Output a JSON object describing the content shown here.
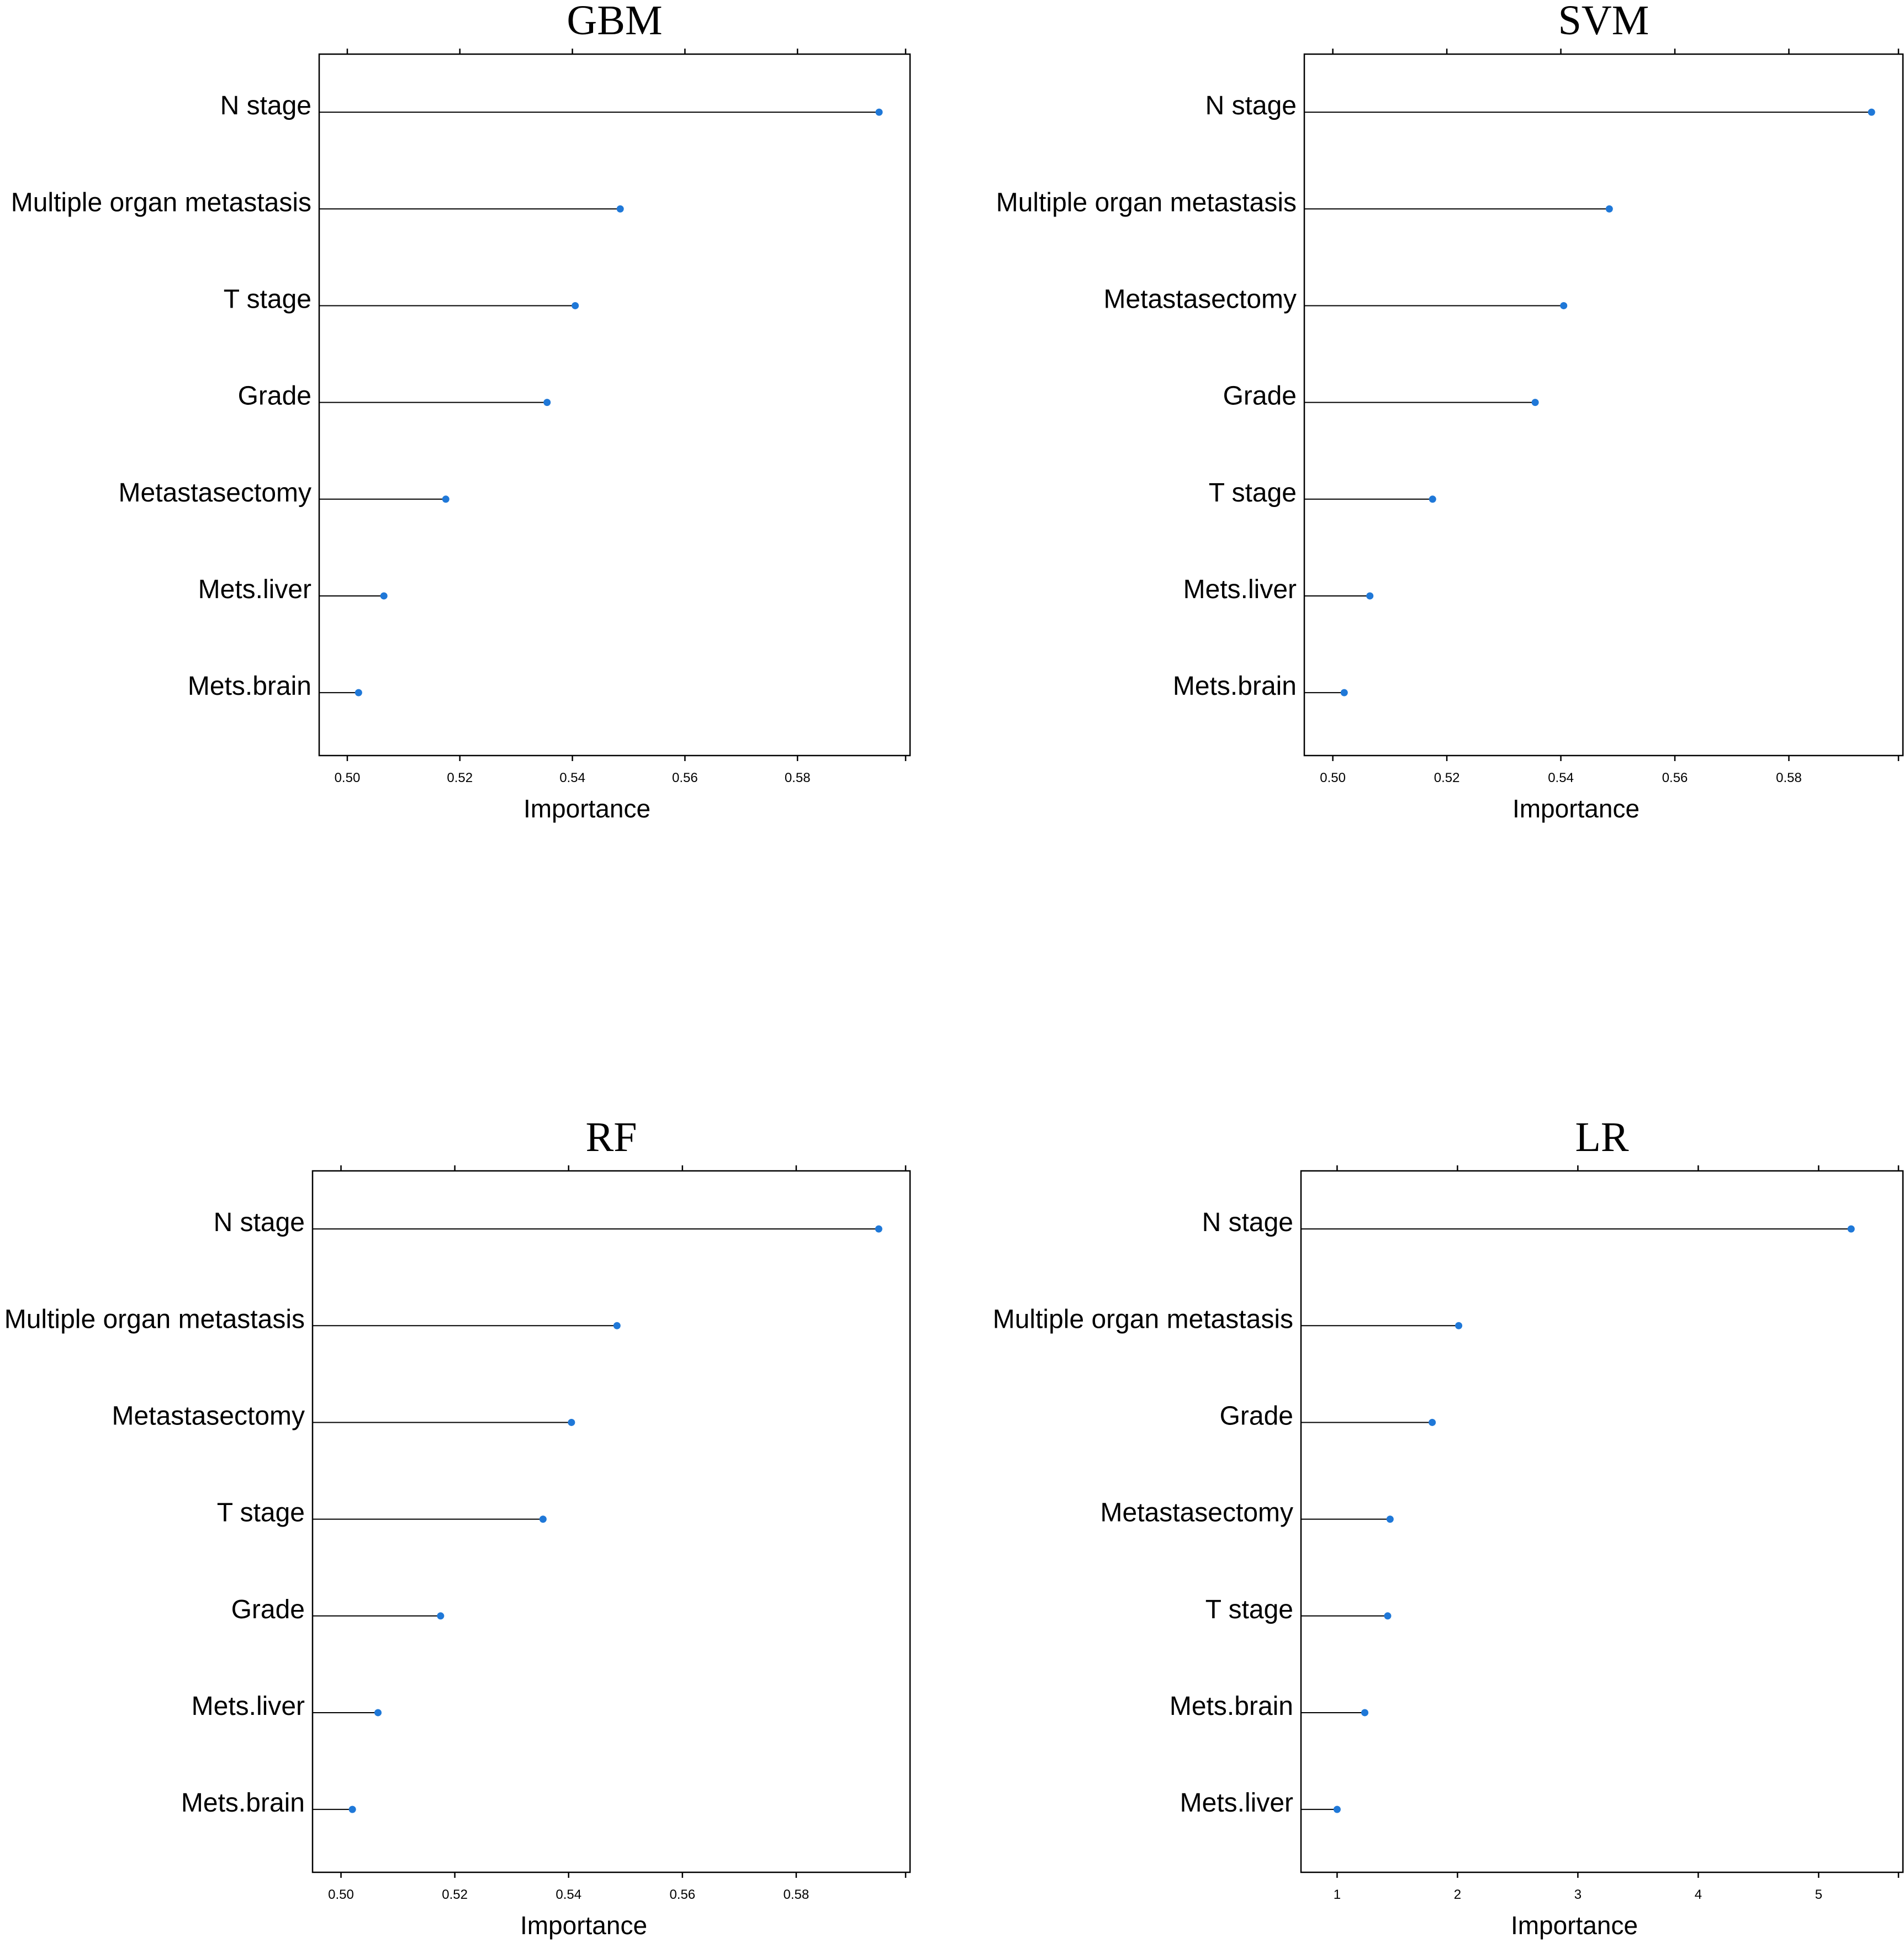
{
  "chart_data": [
    {
      "type": "lollipop",
      "title": "GBM",
      "xlabel": "Importance",
      "xlim": [
        0.495,
        0.6
      ],
      "xticks": [
        0.5,
        0.52,
        0.54,
        0.56,
        0.58
      ],
      "tick_labels": [
        "0.50",
        "0.52",
        "0.54",
        "0.56",
        "0.58"
      ],
      "categories": [
        "N stage",
        "Multiple organ metastasis",
        "T stage",
        "Grade",
        "Metastasectomy",
        "Mets.liver",
        "Mets.brain"
      ],
      "values": [
        0.5945,
        0.5485,
        0.5405,
        0.5355,
        0.5175,
        0.5065,
        0.502
      ],
      "marker_color": "#1f78d8",
      "grid": false
    },
    {
      "type": "lollipop",
      "title": "SVM",
      "xlabel": "Importance",
      "xlim": [
        0.495,
        0.6
      ],
      "xticks": [
        0.5,
        0.52,
        0.54,
        0.56,
        0.58
      ],
      "tick_labels": [
        "0.50",
        "0.52",
        "0.54",
        "0.56",
        "0.58"
      ],
      "categories": [
        "N stage",
        "Multiple organ metastasis",
        "Metastasectomy",
        "Grade",
        "T stage",
        "Mets.liver",
        "Mets.brain"
      ],
      "values": [
        0.5945,
        0.5485,
        0.5405,
        0.5355,
        0.5175,
        0.5065,
        0.502
      ],
      "marker_color": "#1f78d8",
      "grid": false
    },
    {
      "type": "lollipop",
      "title": "RF",
      "xlabel": "Importance",
      "xlim": [
        0.495,
        0.6
      ],
      "xticks": [
        0.5,
        0.52,
        0.54,
        0.56,
        0.58
      ],
      "tick_labels": [
        "0.50",
        "0.52",
        "0.54",
        "0.56",
        "0.58"
      ],
      "categories": [
        "N stage",
        "Multiple organ metastasis",
        "Metastasectomy",
        "T stage",
        "Grade",
        "Mets.liver",
        "Mets.brain"
      ],
      "values": [
        0.5945,
        0.5485,
        0.5405,
        0.5355,
        0.5175,
        0.5065,
        0.502
      ],
      "marker_color": "#1f78d8",
      "grid": false
    },
    {
      "type": "lollipop",
      "title": "LR",
      "xlabel": "Importance",
      "xlim": [
        0.7,
        5.7
      ],
      "xticks": [
        1,
        2,
        3,
        4,
        5
      ],
      "tick_labels": [
        "1",
        "2",
        "3",
        "4",
        "5"
      ],
      "categories": [
        "N stage",
        "Multiple organ metastasis",
        "Grade",
        "Metastasectomy",
        "T stage",
        "Mets.brain",
        "Mets.liver"
      ],
      "values": [
        5.27,
        2.01,
        1.79,
        1.44,
        1.42,
        1.23,
        1.0
      ],
      "marker_color": "#1f78d8",
      "grid": false
    }
  ]
}
